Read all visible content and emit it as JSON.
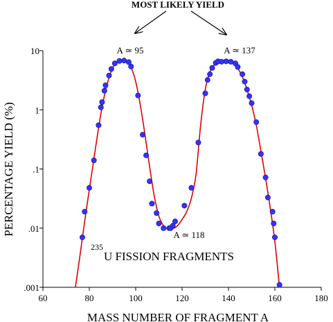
{
  "chart_data": {
    "type": "scatter",
    "title": "MOST LIKELY YIELD",
    "xlabel": "MASS NUMBER OF FRAGMENT    A",
    "ylabel": "PERCENTAGE YIELD (%)",
    "xlim": [
      60,
      180
    ],
    "ylim": [
      0.001,
      10
    ],
    "yscale": "log",
    "grid": false,
    "x_ticks": [
      60,
      80,
      100,
      120,
      140,
      160,
      180
    ],
    "x_tick_labels": [
      "60",
      "80",
      "100",
      "120",
      "140",
      "160",
      "180"
    ],
    "y_ticks": [
      0.001,
      0.01,
      0.1,
      1,
      10
    ],
    "y_tick_labels": [
      ".001",
      ".01",
      ".1",
      "1",
      "10"
    ],
    "annotations": {
      "peak_left": "A ≃ 95",
      "peak_right": "A ≃ 137",
      "valley": "A ≃ 118",
      "isotope_mass": "235",
      "isotope_text": "U  FISSION FRAGMENTS"
    },
    "series": [
      {
        "kind": "points",
        "color": "#3333ff",
        "x": [
          77,
          78,
          80,
          82,
          84,
          85,
          85.5,
          86.5,
          87,
          88.5,
          89.5,
          91,
          93,
          95,
          97,
          98,
          101,
          103,
          104.5,
          106,
          107,
          109,
          110,
          112,
          114.5,
          115,
          116,
          117,
          121,
          124,
          127,
          130,
          131,
          132,
          133,
          134.5,
          135.5,
          137,
          139,
          141,
          143,
          144,
          146,
          147,
          148,
          149,
          150,
          152,
          154,
          156,
          157,
          159,
          159.5,
          160,
          162
        ],
        "y": [
          0.007,
          0.019,
          0.048,
          0.14,
          0.55,
          1.1,
          1.35,
          2.1,
          2.6,
          3.8,
          4.9,
          6.1,
          6.7,
          6.8,
          6.4,
          5.4,
          1.75,
          0.38,
          0.17,
          0.062,
          0.026,
          0.018,
          0.012,
          0.01,
          0.01,
          0.01,
          0.011,
          0.013,
          0.024,
          0.048,
          0.28,
          1.9,
          3.2,
          4.0,
          5.1,
          6.2,
          6.6,
          6.5,
          6.6,
          6.5,
          6.1,
          5.3,
          4.0,
          3.0,
          2.2,
          1.7,
          1.3,
          0.62,
          0.18,
          0.072,
          0.033,
          0.019,
          0.012,
          0.007,
          0.0011
        ]
      },
      {
        "kind": "curve",
        "color": "#dd0000",
        "x": [
          74,
          76,
          78,
          80,
          82,
          84,
          86,
          88,
          90,
          92,
          94,
          96,
          98,
          100,
          102,
          104,
          106,
          108,
          110,
          112,
          114,
          116,
          118,
          120,
          122,
          124,
          126,
          128,
          130,
          132,
          134,
          136,
          138,
          140,
          142,
          144,
          146,
          148,
          150,
          152,
          154,
          156,
          158,
          160,
          162
        ],
        "y": [
          0.001,
          0.0035,
          0.013,
          0.045,
          0.15,
          0.5,
          1.4,
          3.0,
          5.0,
          6.4,
          6.9,
          6.6,
          5.2,
          3.0,
          1.2,
          0.38,
          0.11,
          0.035,
          0.016,
          0.011,
          0.0098,
          0.0098,
          0.011,
          0.014,
          0.019,
          0.032,
          0.08,
          0.55,
          2.2,
          4.4,
          5.8,
          6.5,
          6.7,
          6.6,
          6.0,
          5.0,
          3.6,
          2.2,
          1.2,
          0.55,
          0.2,
          0.07,
          0.022,
          0.006,
          0.001
        ]
      }
    ]
  }
}
